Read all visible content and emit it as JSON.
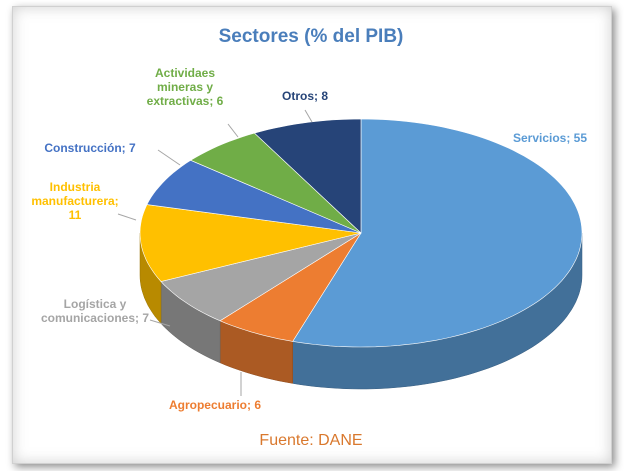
{
  "chart_data": {
    "type": "pie",
    "title": "Sectores (% del PIB)",
    "values": [
      55,
      6,
      7,
      11,
      7,
      6,
      8
    ],
    "value_labels": [
      "Servicios; 55",
      "Agropecuario; 6",
      "Logística y comunicaciones; 7",
      "Industria manufacturera; 11",
      "Construcción; 7",
      "Actividaes mineras y extractivas; 6",
      "Otros; 8"
    ],
    "colors": [
      "#5b9bd5",
      "#ed7d31",
      "#a5a5a5",
      "#ffc000",
      "#4472c4",
      "#70ad47",
      "#264478"
    ],
    "source": "Fuente: DANE"
  }
}
